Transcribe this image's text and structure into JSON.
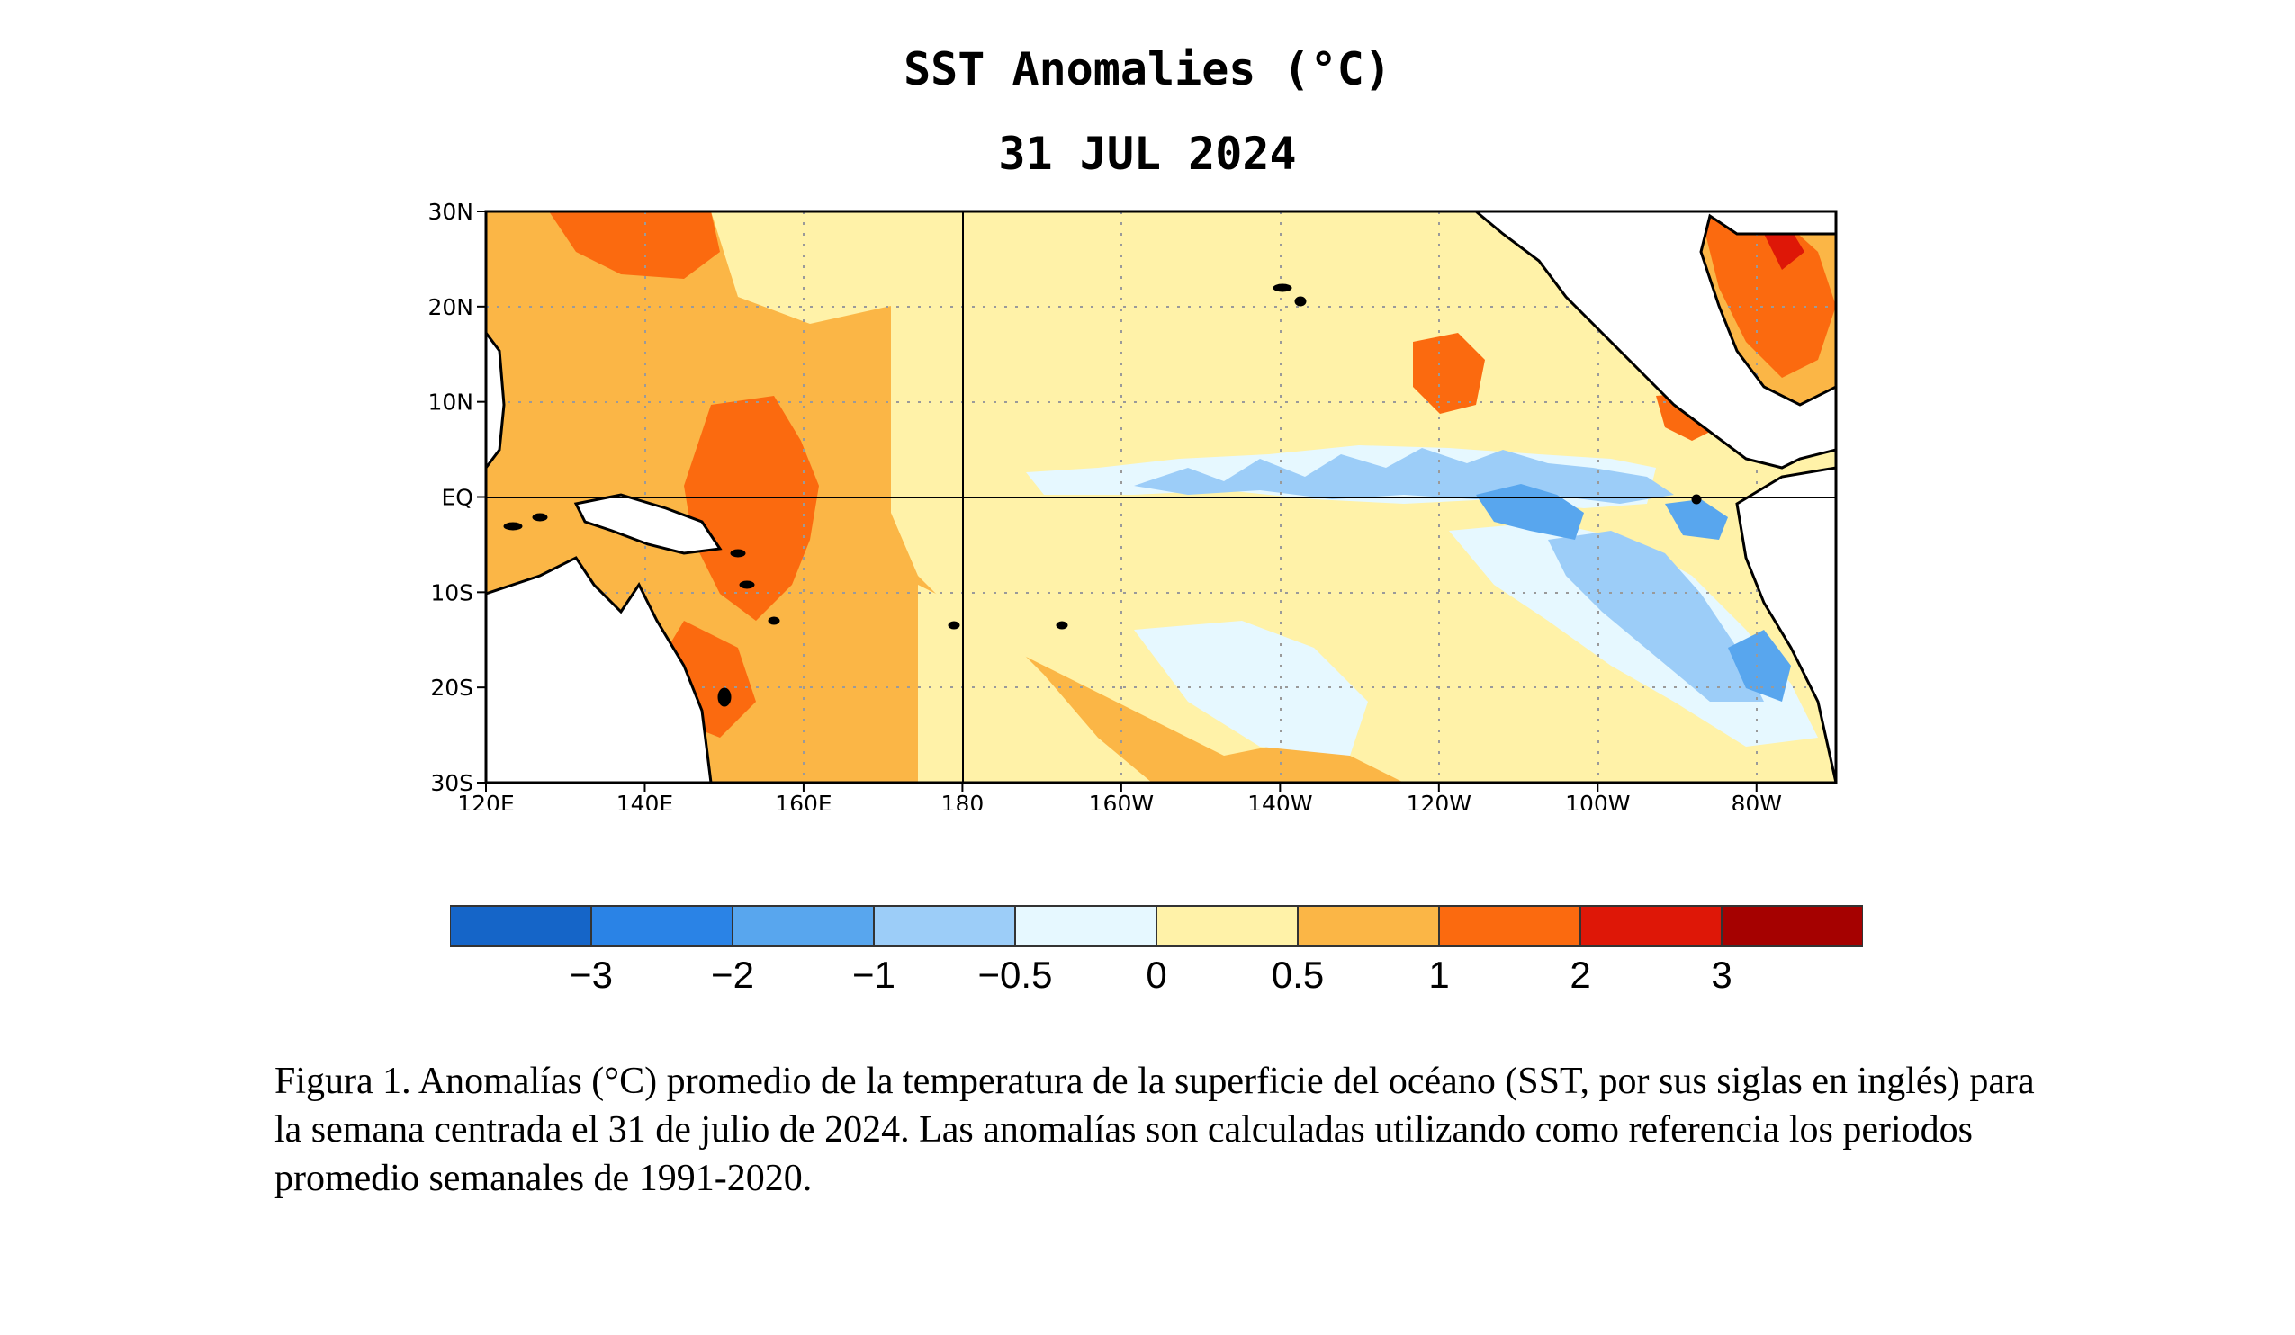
{
  "title": "SST Anomalies (°C)",
  "date": "31 JUL 2024",
  "map": {
    "lon_range_east": [
      120,
      290
    ],
    "lat_range": [
      -30,
      30
    ],
    "lat_ticks": [
      "30N",
      "20N",
      "10N",
      "EQ",
      "10S",
      "20S",
      "30S"
    ],
    "lon_ticks": [
      "120E",
      "140E",
      "160E",
      "180",
      "160W",
      "140W",
      "120W",
      "100W",
      "80W"
    ],
    "grid": "dotted",
    "equator_line": true,
    "dateline_line": true,
    "land_color": "#ffffff"
  },
  "colorbar": {
    "colors": [
      "#1565c8",
      "#2a83e6",
      "#58a6ee",
      "#9ccdf8",
      "#e6f8ff",
      "#fff2a8",
      "#fbb646",
      "#fb6a0f",
      "#de1707",
      "#a50100"
    ],
    "labels": [
      "−3",
      "−2",
      "−1",
      "−0.5",
      "0",
      "0.5",
      "1",
      "2",
      "3"
    ]
  },
  "caption": "Figura 1. Anomalías (°C) promedio de la temperatura de la superficie del océano (SST, por sus siglas en inglés) para la semana centrada el 31 de julio de 2024. Las anomalías son calculadas utilizando como referencia los periodos promedio semanales de 1991-2020."
}
